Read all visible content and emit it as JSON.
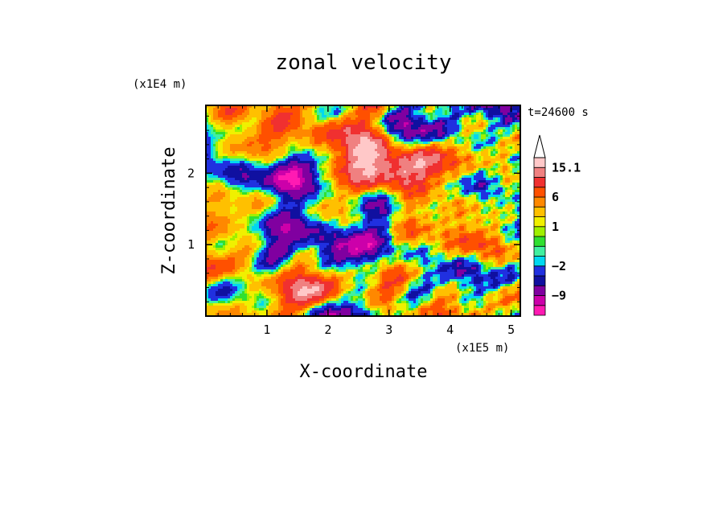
{
  "chart_data": {
    "type": "heatmap",
    "title": "zonal velocity",
    "xlabel": "X-coordinate",
    "ylabel": "Z-coordinate",
    "x_scale_label": "(x1E5 m)",
    "y_scale_label": "(x1E4 m)",
    "time_label": "t=24600 s",
    "xlim": [
      0,
      5.15
    ],
    "ylim": [
      0,
      2.95
    ],
    "x_ticks": [
      1,
      2,
      3,
      4,
      5
    ],
    "y_ticks": [
      1,
      2
    ],
    "x_tick_labels": [
      "1",
      "2",
      "3",
      "4",
      "5"
    ],
    "y_tick_labels": [
      "1",
      "2"
    ],
    "colorbar": {
      "levels": [
        -15,
        -12,
        -9,
        -6,
        -4,
        -2,
        -1,
        0,
        0.5,
        1,
        2,
        4,
        6,
        9,
        12,
        15.1
      ],
      "labels": [
        {
          "value": 15.1,
          "text": "15.1"
        },
        {
          "value": 6,
          "text": "6"
        },
        {
          "value": 1,
          "text": "1"
        },
        {
          "value": -2,
          "text": "−2"
        },
        {
          "value": -9,
          "text": "−9"
        }
      ],
      "colors": [
        "#ff1ab3",
        "#cc00aa",
        "#8000a0",
        "#1010a0",
        "#2030e0",
        "#00d8f0",
        "#40f0a0",
        "#30e030",
        "#a0f000",
        "#f0f000",
        "#ffc000",
        "#ff8800",
        "#ff5000",
        "#f03030",
        "#f08080",
        "#ffc8c8"
      ]
    }
  }
}
